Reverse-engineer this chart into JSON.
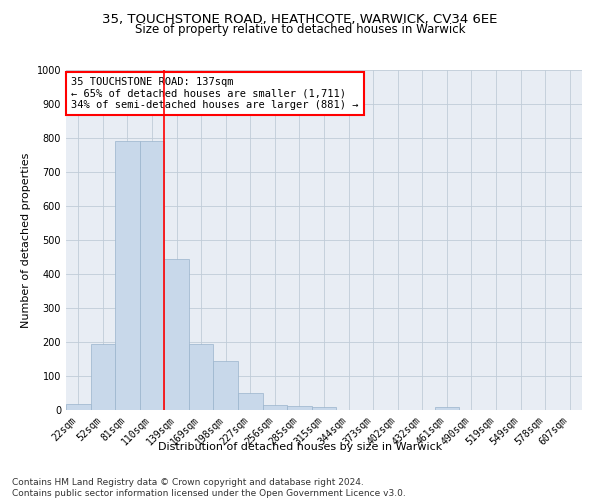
{
  "title_line1": "35, TOUCHSTONE ROAD, HEATHCOTE, WARWICK, CV34 6EE",
  "title_line2": "Size of property relative to detached houses in Warwick",
  "xlabel": "Distribution of detached houses by size in Warwick",
  "ylabel": "Number of detached properties",
  "bar_color": "#c8d8ea",
  "bar_edgecolor": "#9ab4cc",
  "bin_labels": [
    "22sqm",
    "52sqm",
    "81sqm",
    "110sqm",
    "139sqm",
    "169sqm",
    "198sqm",
    "227sqm",
    "256sqm",
    "285sqm",
    "315sqm",
    "344sqm",
    "373sqm",
    "402sqm",
    "432sqm",
    "461sqm",
    "490sqm",
    "519sqm",
    "549sqm",
    "578sqm",
    "607sqm"
  ],
  "bar_heights": [
    18,
    195,
    790,
    790,
    445,
    195,
    145,
    50,
    15,
    12,
    10,
    0,
    0,
    0,
    0,
    8,
    0,
    0,
    0,
    0,
    0
  ],
  "vline_color": "red",
  "vline_pos": 3.5,
  "annotation_text": "35 TOUCHSTONE ROAD: 137sqm\n← 65% of detached houses are smaller (1,711)\n34% of semi-detached houses are larger (881) →",
  "annotation_box_color": "white",
  "annotation_box_edgecolor": "red",
  "ylim": [
    0,
    1000
  ],
  "yticks": [
    0,
    100,
    200,
    300,
    400,
    500,
    600,
    700,
    800,
    900,
    1000
  ],
  "grid_color": "#c0ccd8",
  "background_color": "#e8edf4",
  "footer_text": "Contains HM Land Registry data © Crown copyright and database right 2024.\nContains public sector information licensed under the Open Government Licence v3.0.",
  "title_fontsize": 9.5,
  "subtitle_fontsize": 8.5,
  "axis_label_fontsize": 8,
  "tick_fontsize": 7,
  "annotation_fontsize": 7.5,
  "footer_fontsize": 6.5
}
